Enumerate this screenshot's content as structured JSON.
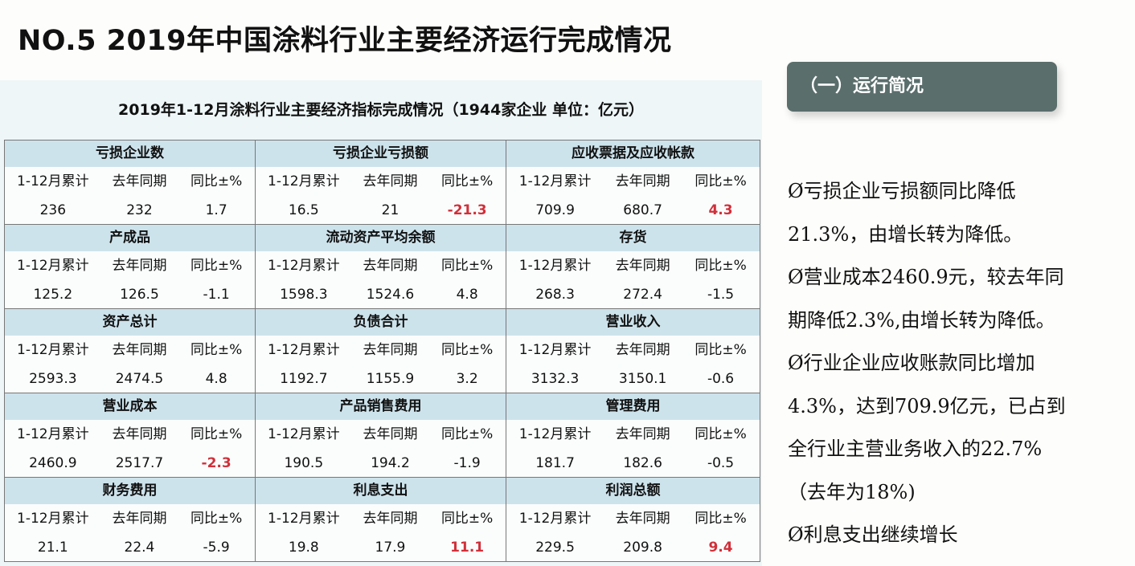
{
  "page_title": "NO.5   2019年中国涂料行业主要经济运行完成情况",
  "table": {
    "title": "2019年1-12月涂料行业主要经济指标完成情况（1944家企业  单位：亿元）",
    "column_labels": [
      "1-12月累计",
      "去年同期",
      "同比±%"
    ],
    "highlight_color": "#d0303a",
    "groups": [
      [
        {
          "name": "亏损企业数",
          "values": [
            "236",
            "232",
            "1.7"
          ],
          "highlight": false
        },
        {
          "name": "亏损企业亏损额",
          "values": [
            "16.5",
            "21",
            "-21.3"
          ],
          "highlight": true
        },
        {
          "name": "应收票据及应收帐款",
          "values": [
            "709.9",
            "680.7",
            "4.3"
          ],
          "highlight": true
        }
      ],
      [
        {
          "name": "产成品",
          "values": [
            "125.2",
            "126.5",
            "-1.1"
          ],
          "highlight": false
        },
        {
          "name": "流动资产平均余额",
          "values": [
            "1598.3",
            "1524.6",
            "4.8"
          ],
          "highlight": false
        },
        {
          "name": "存货",
          "values": [
            "268.3",
            "272.4",
            "-1.5"
          ],
          "highlight": false
        }
      ],
      [
        {
          "name": "资产总计",
          "values": [
            "2593.3",
            "2474.5",
            "4.8"
          ],
          "highlight": false
        },
        {
          "name": "负债合计",
          "values": [
            "1192.7",
            "1155.9",
            "3.2"
          ],
          "highlight": false
        },
        {
          "name": "营业收入",
          "values": [
            "3132.3",
            "3150.1",
            "-0.6"
          ],
          "highlight": false
        }
      ],
      [
        {
          "name": "营业成本",
          "values": [
            "2460.9",
            "2517.7",
            "-2.3"
          ],
          "highlight": true
        },
        {
          "name": "产品销售费用",
          "values": [
            "190.5",
            "194.2",
            "-1.9"
          ],
          "highlight": false
        },
        {
          "name": "管理费用",
          "values": [
            "181.7",
            "182.6",
            "-0.5"
          ],
          "highlight": false
        }
      ],
      [
        {
          "name": "财务费用",
          "values": [
            "21.1",
            "22.4",
            "-5.9"
          ],
          "highlight": false
        },
        {
          "name": "利息支出",
          "values": [
            "19.8",
            "17.9",
            "11.1"
          ],
          "highlight": true
        },
        {
          "name": "利润总额",
          "values": [
            "229.5",
            "209.8",
            "9.4"
          ],
          "highlight": true
        }
      ]
    ]
  },
  "summary": {
    "heading": "（一）运行简况",
    "lines": [
      "Ø亏损企业亏损额同比降低",
      "21.3%，由增长转为降低。",
      "Ø营业成本2460.9元，较去年同",
      "期降低2.3%,由增长转为降低。",
      "Ø行业企业应收账款同比增加",
      "4.3%，达到709.9亿元，已占到",
      "全行业主营业务收入的22.7%",
      "（去年为18%)",
      "Ø利息支出继续增长"
    ]
  }
}
